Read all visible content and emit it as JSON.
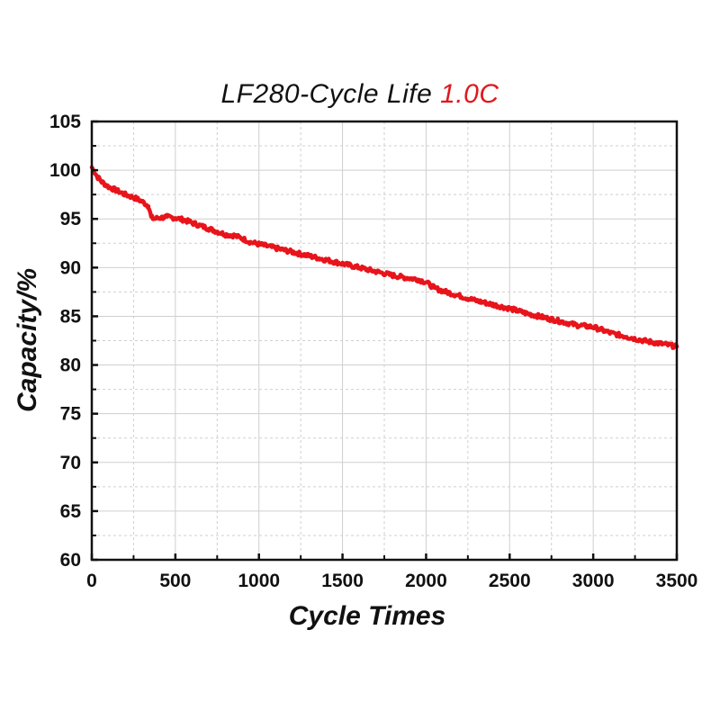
{
  "chart_data": {
    "type": "line",
    "title": "LF280-Cycle Life",
    "title_rate": "1.0C",
    "xlabel": "Cycle Times",
    "ylabel": "Capacity/%",
    "xlim": [
      0,
      3500
    ],
    "ylim": [
      60,
      105
    ],
    "x_ticks": [
      "0",
      "500",
      "1000",
      "1500",
      "2000",
      "2500",
      "3000",
      "3500"
    ],
    "y_ticks": [
      "60",
      "65",
      "70",
      "75",
      "80",
      "85",
      "90",
      "95",
      "100",
      "105"
    ],
    "grid": true,
    "colors": {
      "series": "#e8141b",
      "accent": "#e0181e",
      "axis": "#111111",
      "grid": "#cfcfcf"
    },
    "series": [
      {
        "x": [
          0,
          10,
          30,
          60,
          100,
          150,
          200,
          250,
          300,
          340,
          355,
          370,
          400,
          450,
          500,
          550,
          600,
          650,
          700,
          750,
          800,
          850,
          900,
          950,
          1000,
          1100,
          1200,
          1300,
          1400,
          1500,
          1600,
          1700,
          1800,
          1900,
          1950,
          2000,
          2050,
          2100,
          2200,
          2300,
          2400,
          2500,
          2600,
          2700,
          2800,
          2900,
          3000,
          3050,
          3100,
          3200,
          3300,
          3400,
          3500
        ],
        "y": [
          100.3,
          100.0,
          99.4,
          98.8,
          98.3,
          97.9,
          97.5,
          97.2,
          96.8,
          96.3,
          95.2,
          95.0,
          95.1,
          95.2,
          95.1,
          94.9,
          94.6,
          94.3,
          94.0,
          93.7,
          93.4,
          93.3,
          93.0,
          92.6,
          92.4,
          92.0,
          91.6,
          91.2,
          90.8,
          90.4,
          90.0,
          89.6,
          89.2,
          88.9,
          88.8,
          88.5,
          87.9,
          87.6,
          87.1,
          86.6,
          86.2,
          85.8,
          85.3,
          84.9,
          84.5,
          84.1,
          83.9,
          83.6,
          83.3,
          82.9,
          82.5,
          82.2,
          81.9
        ]
      }
    ]
  }
}
